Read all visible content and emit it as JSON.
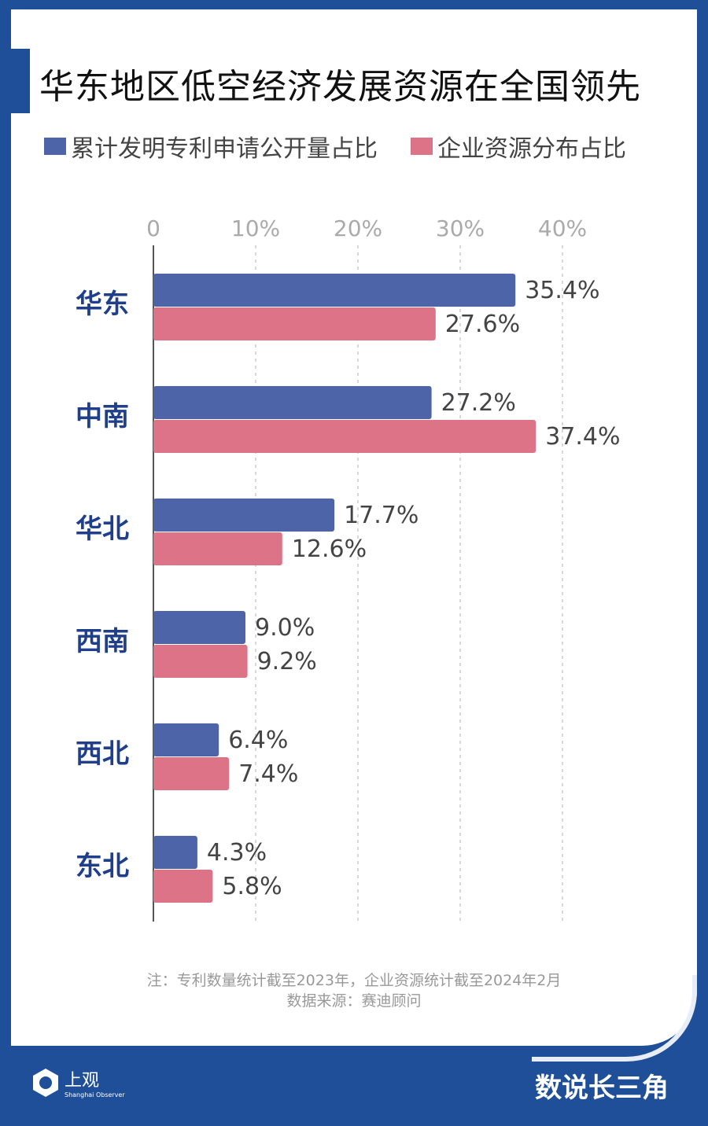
{
  "title": "华东地区低空经济发展资源在全国领先",
  "chart_data": {
    "type": "bar",
    "orientation": "horizontal",
    "title": "华东地区低空经济发展资源在全国领先",
    "categories": [
      "华东",
      "中南",
      "华北",
      "西南",
      "西北",
      "东北"
    ],
    "series": [
      {
        "name": "累计发明专利申请公开量占比",
        "color": "#4e64a8",
        "values": [
          35.4,
          27.2,
          17.7,
          9.0,
          6.4,
          4.3
        ],
        "labels": [
          "35.4%",
          "27.2%",
          "17.7%",
          "9.0%",
          "6.4%",
          "4.3%"
        ]
      },
      {
        "name": "企业资源分布占比",
        "color": "#dc7386",
        "values": [
          27.6,
          37.4,
          12.6,
          9.2,
          7.4,
          5.8
        ],
        "labels": [
          "27.6%",
          "37.4%",
          "12.6%",
          "9.2%",
          "7.4%",
          "5.8%"
        ]
      }
    ],
    "xlim": [
      0,
      40
    ],
    "ticks": [
      "0",
      "10%",
      "20%",
      "30%",
      "40%"
    ],
    "grid": true,
    "legend": "top-left"
  },
  "footer": {
    "note": "注：专利数量统计截至2023年，企业资源统计截至2024年2月",
    "source": "数据来源：赛迪顾问",
    "logo_cn": "上观",
    "logo_en": "Shanghai Observer",
    "brand": "数说长三角"
  }
}
